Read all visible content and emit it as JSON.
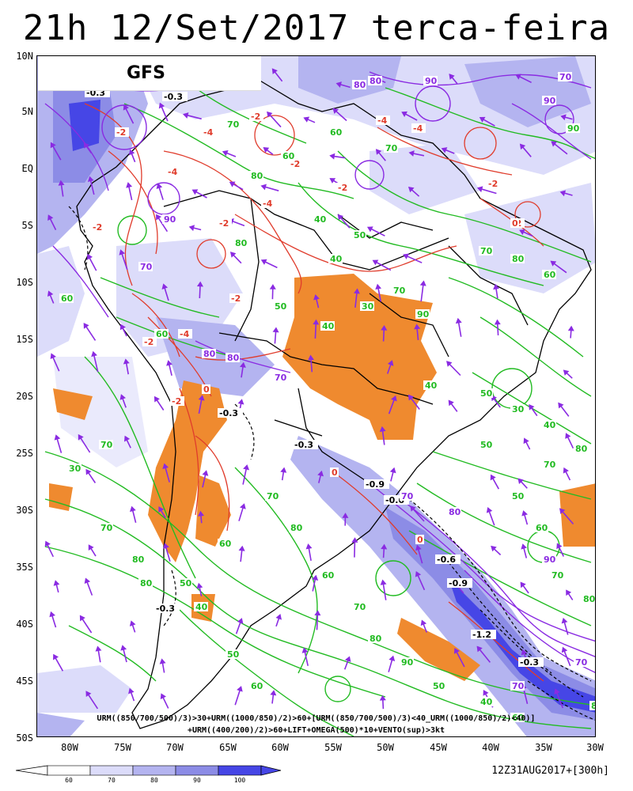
{
  "title": "21h 12/Set/2017 terca-feira",
  "model": "GFS",
  "lat_labels": [
    "10N",
    "5N",
    "EQ",
    "5S",
    "10S",
    "15S",
    "20S",
    "25S",
    "30S",
    "35S",
    "40S",
    "45S",
    "50S"
  ],
  "lon_labels": [
    "80W",
    "75W",
    "70W",
    "65W",
    "60W",
    "55W",
    "50W",
    "45W",
    "40W",
    "35W",
    "30W"
  ],
  "caption_line1": "URM((850/700/500)/3)>30+URM((1000/850)/2)>60+[URM((850/700/500)/3)<40_URM((1000/850)/2)<40)]",
  "caption_line2": "+URM((400/200)/2)>60+LIFT+OMEGA(500)*10+VENTO(sup)>3kt",
  "legend": {
    "labels": [
      "60",
      "70",
      "80",
      "90",
      "100"
    ],
    "colors": [
      "#ffffff",
      "#dcdcfa",
      "#b4b4f0",
      "#8c8ce6",
      "#4646e6"
    ]
  },
  "run_time": "12Z31AUG2017+[300h]",
  "colors": {
    "humidity_green": "#22bb22",
    "omega_red": "#e03c2c",
    "upper_purple": "#8a2be2",
    "lift_orange": "#ef8a2f",
    "border_black": "#000000"
  },
  "contour_labels": [
    {
      "text": "-0.3",
      "color": "#000000"
    },
    {
      "text": "-0.3",
      "color": "#000000"
    },
    {
      "text": "-0.3",
      "color": "#000000"
    },
    {
      "text": "-0.3",
      "color": "#000000"
    },
    {
      "text": "-0.9",
      "color": "#000000"
    },
    {
      "text": "-0.6",
      "color": "#000000"
    },
    {
      "text": "-0.6",
      "color": "#000000"
    },
    {
      "text": "-0.9",
      "color": "#000000"
    },
    {
      "text": "-1.2",
      "color": "#000000"
    },
    {
      "text": "-0.3",
      "color": "#000000"
    },
    {
      "text": "-0.3",
      "color": "#000000"
    },
    {
      "text": "-2",
      "color": "#e03c2c"
    },
    {
      "text": "-4",
      "color": "#e03c2c"
    },
    {
      "text": "-2",
      "color": "#e03c2c"
    },
    {
      "text": "-4",
      "color": "#e03c2c"
    },
    {
      "text": "-2",
      "color": "#e03c2c"
    },
    {
      "text": "-2",
      "color": "#e03c2c"
    },
    {
      "text": "-4",
      "color": "#e03c2c"
    },
    {
      "text": "-4",
      "color": "#e03c2c"
    },
    {
      "text": "-2",
      "color": "#e03c2c"
    },
    {
      "text": "-2",
      "color": "#e03c2c"
    },
    {
      "text": "-4",
      "color": "#e03c2c"
    },
    {
      "text": "-2",
      "color": "#e03c2c"
    },
    {
      "text": "-2",
      "color": "#e03c2c"
    },
    {
      "text": "-2",
      "color": "#e03c2c"
    },
    {
      "text": "-4",
      "color": "#e03c2c"
    },
    {
      "text": "-2",
      "color": "#e03c2c"
    },
    {
      "text": "-2",
      "color": "#e03c2c"
    },
    {
      "text": "0",
      "color": "#e03c2c"
    },
    {
      "text": "0",
      "color": "#e03c2c"
    },
    {
      "text": "0",
      "color": "#e03c2c"
    },
    {
      "text": "0",
      "color": "#e03c2c"
    },
    {
      "text": "70",
      "color": "#8a2be2"
    },
    {
      "text": "80",
      "color": "#8a2be2"
    },
    {
      "text": "90",
      "color": "#8a2be2"
    },
    {
      "text": "70",
      "color": "#8a2be2"
    },
    {
      "text": "90",
      "color": "#8a2be2"
    },
    {
      "text": "80",
      "color": "#8a2be2"
    },
    {
      "text": "70",
      "color": "#8a2be2"
    },
    {
      "text": "80",
      "color": "#8a2be2"
    },
    {
      "text": "70",
      "color": "#8a2be2"
    },
    {
      "text": "90",
      "color": "#8a2be2"
    },
    {
      "text": "80",
      "color": "#8a2be2"
    },
    {
      "text": "70",
      "color": "#8a2be2"
    },
    {
      "text": "80",
      "color": "#8a2be2"
    },
    {
      "text": "70",
      "color": "#8a2be2"
    },
    {
      "text": "90",
      "color": "#8a2be2"
    },
    {
      "text": "70",
      "color": "#8a2be2"
    },
    {
      "text": "30",
      "color": "#22bb22"
    },
    {
      "text": "60",
      "color": "#22bb22"
    },
    {
      "text": "70",
      "color": "#22bb22"
    },
    {
      "text": "80",
      "color": "#22bb22"
    },
    {
      "text": "60",
      "color": "#22bb22"
    },
    {
      "text": "40",
      "color": "#22bb22"
    },
    {
      "text": "50",
      "color": "#22bb22"
    },
    {
      "text": "60",
      "color": "#22bb22"
    },
    {
      "text": "70",
      "color": "#22bb22"
    },
    {
      "text": "80",
      "color": "#22bb22"
    },
    {
      "text": "50",
      "color": "#22bb22"
    },
    {
      "text": "40",
      "color": "#22bb22"
    },
    {
      "text": "70",
      "color": "#22bb22"
    },
    {
      "text": "80",
      "color": "#22bb22"
    },
    {
      "text": "60",
      "color": "#22bb22"
    },
    {
      "text": "40",
      "color": "#22bb22"
    },
    {
      "text": "50",
      "color": "#22bb22"
    },
    {
      "text": "30",
      "color": "#22bb22"
    },
    {
      "text": "40",
      "color": "#22bb22"
    },
    {
      "text": "50",
      "color": "#22bb22"
    },
    {
      "text": "60",
      "color": "#22bb22"
    },
    {
      "text": "70",
      "color": "#22bb22"
    },
    {
      "text": "80",
      "color": "#22bb22"
    },
    {
      "text": "40",
      "color": "#22bb22"
    },
    {
      "text": "50",
      "color": "#22bb22"
    },
    {
      "text": "60",
      "color": "#22bb22"
    },
    {
      "text": "70",
      "color": "#22bb22"
    },
    {
      "text": "80",
      "color": "#22bb22"
    },
    {
      "text": "50",
      "color": "#22bb22"
    },
    {
      "text": "60",
      "color": "#22bb22"
    },
    {
      "text": "70",
      "color": "#22bb22"
    },
    {
      "text": "80",
      "color": "#22bb22"
    },
    {
      "text": "60",
      "color": "#22bb22"
    },
    {
      "text": "70",
      "color": "#22bb22"
    },
    {
      "text": "80",
      "color": "#22bb22"
    },
    {
      "text": "90",
      "color": "#22bb22"
    },
    {
      "text": "50",
      "color": "#22bb22"
    },
    {
      "text": "40",
      "color": "#22bb22"
    },
    {
      "text": "60",
      "color": "#22bb22"
    },
    {
      "text": "70",
      "color": "#22bb22"
    },
    {
      "text": "80",
      "color": "#22bb22"
    },
    {
      "text": "50",
      "color": "#22bb22"
    },
    {
      "text": "60",
      "color": "#22bb22"
    },
    {
      "text": "70",
      "color": "#22bb22"
    },
    {
      "text": "80",
      "color": "#22bb22"
    },
    {
      "text": "40",
      "color": "#22bb22"
    },
    {
      "text": "30",
      "color": "#22bb22"
    },
    {
      "text": "70",
      "color": "#22bb22"
    },
    {
      "text": "90",
      "color": "#22bb22"
    },
    {
      "text": "90",
      "color": "#22bb22"
    },
    {
      "text": "80",
      "color": "#22bb22"
    }
  ]
}
